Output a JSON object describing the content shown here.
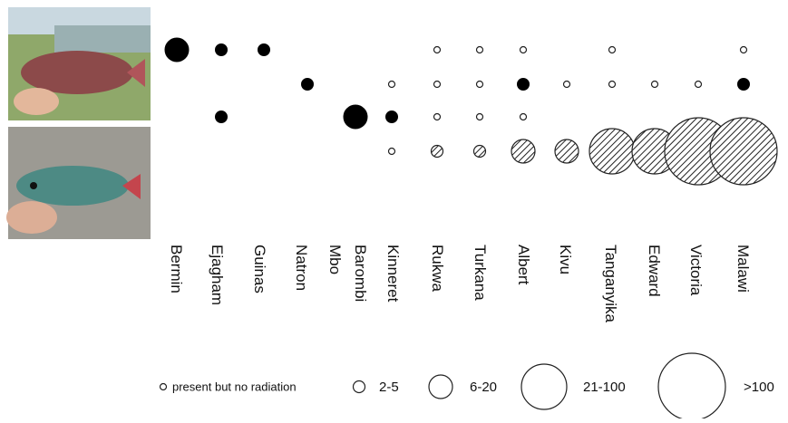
{
  "chart_data": {
    "type": "bubble-matrix",
    "columns": [
      "Bermin",
      "Ejagham",
      "Guinas",
      "Natron",
      "Mbo",
      "Barombi",
      "Kinneret",
      "Rukwa",
      "Turkana",
      "Albert",
      "Kivu",
      "Tanganyika",
      "Edward",
      "Victoria",
      "Malawi"
    ],
    "rows": [
      {
        "fill": "solid",
        "values": [
          2,
          1,
          1,
          null,
          null,
          null,
          null,
          0,
          0,
          0,
          null,
          0,
          null,
          null,
          0
        ]
      },
      {
        "fill": "solid",
        "values": [
          null,
          null,
          null,
          1,
          null,
          null,
          0,
          0,
          0,
          1,
          0,
          0,
          0,
          0,
          1
        ]
      },
      {
        "fill": "solid",
        "values": [
          null,
          1,
          null,
          null,
          null,
          2,
          1,
          0,
          0,
          0,
          null,
          null,
          null,
          null,
          null
        ]
      },
      {
        "fill": "hatched",
        "values": [
          null,
          null,
          null,
          null,
          null,
          null,
          0,
          1,
          1,
          2,
          2,
          3,
          3,
          4,
          4
        ]
      }
    ],
    "legend": [
      "present but no radiation",
      "2-5",
      "6-20",
      "21-100",
      ">100"
    ]
  }
}
